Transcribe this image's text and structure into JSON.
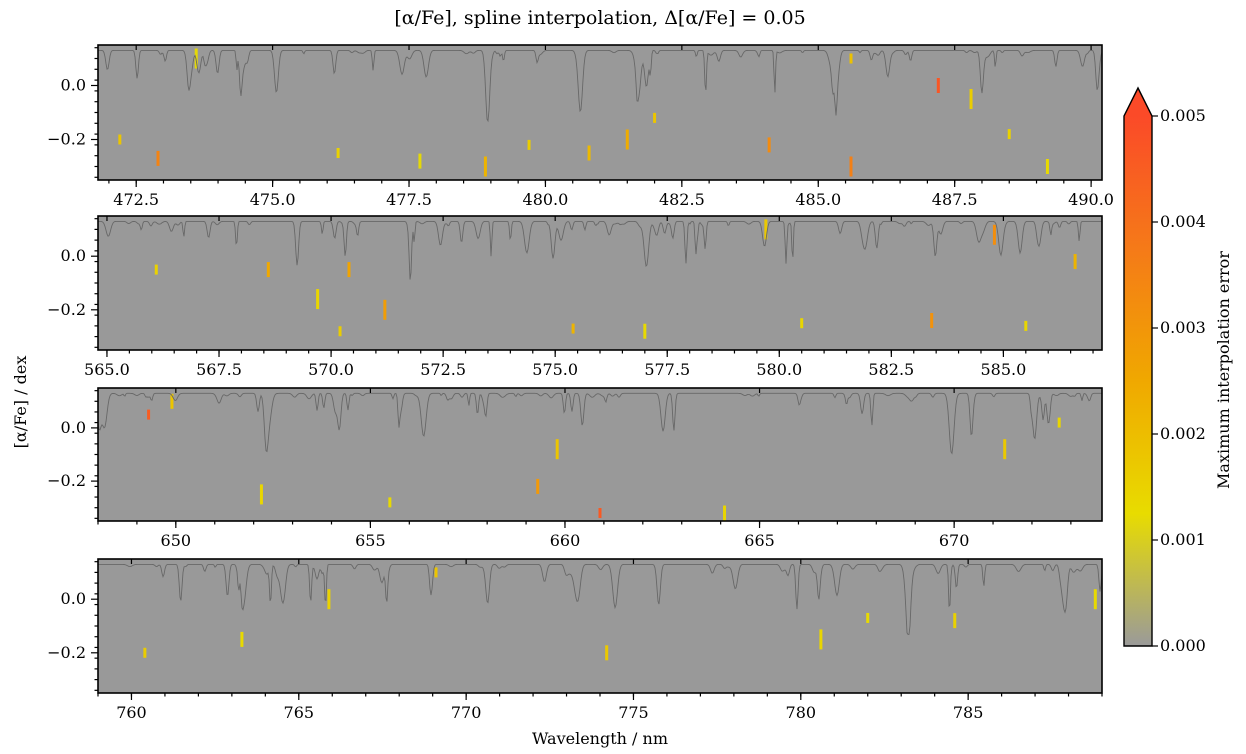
{
  "figure": {
    "title": "[α/Fe], spline interpolation, Δ[α/Fe] = 0.05",
    "xlabel": "Wavelength / nm",
    "ylabel": "[α/Fe] / dex",
    "colorbar_label": "Maximum interpolation error"
  },
  "chart_data": [
    {
      "type": "heatmap",
      "panel": 1,
      "xlim": [
        471.8,
        490.2
      ],
      "ylim": [
        -0.35,
        0.15
      ],
      "xticks": [
        472.5,
        475.0,
        477.5,
        480.0,
        482.5,
        485.0,
        487.5,
        490.0
      ],
      "xtick_labels": [
        "472.5",
        "475.0",
        "477.5",
        "480.0",
        "482.5",
        "485.0",
        "487.5",
        "490.0"
      ],
      "yticks": [
        0.0,
        -0.2
      ],
      "ytick_labels": [
        "0.0",
        "−0.2"
      ],
      "background_value": 0.0,
      "hotspots": [
        {
          "x": 472.2,
          "y": -0.2,
          "v": 0.0018
        },
        {
          "x": 472.9,
          "y": -0.27,
          "v": 0.0035
        },
        {
          "x": 473.6,
          "y": 0.1,
          "v": 0.0012
        },
        {
          "x": 476.2,
          "y": -0.25,
          "v": 0.0015
        },
        {
          "x": 477.7,
          "y": -0.28,
          "v": 0.0012
        },
        {
          "x": 478.9,
          "y": -0.3,
          "v": 0.0022
        },
        {
          "x": 479.7,
          "y": -0.22,
          "v": 0.0016
        },
        {
          "x": 480.8,
          "y": -0.25,
          "v": 0.0021
        },
        {
          "x": 481.5,
          "y": -0.2,
          "v": 0.0024
        },
        {
          "x": 482.0,
          "y": -0.12,
          "v": 0.0018
        },
        {
          "x": 484.1,
          "y": -0.22,
          "v": 0.0033
        },
        {
          "x": 485.6,
          "y": -0.3,
          "v": 0.0036
        },
        {
          "x": 485.6,
          "y": 0.1,
          "v": 0.0019
        },
        {
          "x": 487.2,
          "y": 0.0,
          "v": 0.0047
        },
        {
          "x": 487.8,
          "y": -0.05,
          "v": 0.0016
        },
        {
          "x": 488.5,
          "y": -0.18,
          "v": 0.0015
        },
        {
          "x": 489.2,
          "y": -0.3,
          "v": 0.0013
        }
      ]
    },
    {
      "type": "heatmap",
      "panel": 2,
      "xlim": [
        564.8,
        587.2
      ],
      "ylim": [
        -0.35,
        0.15
      ],
      "xticks": [
        565.0,
        567.5,
        570.0,
        572.5,
        575.0,
        577.5,
        580.0,
        582.5,
        585.0
      ],
      "xtick_labels": [
        "565.0",
        "567.5",
        "570.0",
        "572.5",
        "575.0",
        "577.5",
        "580.0",
        "582.5",
        "585.0"
      ],
      "yticks": [
        0.0,
        -0.2
      ],
      "ytick_labels": [
        "0.0",
        "−0.2"
      ],
      "background_value": 0.0,
      "hotspots": [
        {
          "x": 566.1,
          "y": -0.05,
          "v": 0.0015
        },
        {
          "x": 568.6,
          "y": -0.05,
          "v": 0.0025
        },
        {
          "x": 569.7,
          "y": -0.16,
          "v": 0.0014
        },
        {
          "x": 570.2,
          "y": -0.28,
          "v": 0.0016
        },
        {
          "x": 570.4,
          "y": -0.05,
          "v": 0.0026
        },
        {
          "x": 571.2,
          "y": -0.2,
          "v": 0.0028
        },
        {
          "x": 575.4,
          "y": -0.27,
          "v": 0.0022
        },
        {
          "x": 577.0,
          "y": -0.28,
          "v": 0.0013
        },
        {
          "x": 579.7,
          "y": 0.1,
          "v": 0.0017
        },
        {
          "x": 580.5,
          "y": -0.25,
          "v": 0.0014
        },
        {
          "x": 583.4,
          "y": -0.24,
          "v": 0.0031
        },
        {
          "x": 584.8,
          "y": 0.08,
          "v": 0.0032
        },
        {
          "x": 585.5,
          "y": -0.26,
          "v": 0.0014
        },
        {
          "x": 586.6,
          "y": -0.02,
          "v": 0.0022
        }
      ]
    },
    {
      "type": "heatmap",
      "panel": 3,
      "xlim": [
        648.0,
        673.8
      ],
      "ylim": [
        -0.35,
        0.15
      ],
      "xticks": [
        650,
        655,
        660,
        665,
        670
      ],
      "xtick_labels": [
        "650",
        "655",
        "660",
        "665",
        "670"
      ],
      "yticks": [
        0.0,
        -0.2
      ],
      "ytick_labels": [
        "0.0",
        "−0.2"
      ],
      "background_value": 0.0,
      "hotspots": [
        {
          "x": 649.3,
          "y": 0.05,
          "v": 0.0045
        },
        {
          "x": 649.9,
          "y": 0.1,
          "v": 0.0018
        },
        {
          "x": 652.2,
          "y": -0.25,
          "v": 0.0014
        },
        {
          "x": 655.5,
          "y": -0.28,
          "v": 0.0013
        },
        {
          "x": 659.3,
          "y": -0.22,
          "v": 0.0029
        },
        {
          "x": 659.8,
          "y": -0.08,
          "v": 0.0018
        },
        {
          "x": 660.9,
          "y": -0.32,
          "v": 0.0046
        },
        {
          "x": 664.1,
          "y": -0.32,
          "v": 0.0014
        },
        {
          "x": 671.3,
          "y": -0.08,
          "v": 0.0017
        },
        {
          "x": 672.7,
          "y": 0.02,
          "v": 0.0014
        }
      ]
    },
    {
      "type": "heatmap",
      "panel": 4,
      "xlim": [
        759.0,
        789.0
      ],
      "ylim": [
        -0.35,
        0.15
      ],
      "xticks": [
        760,
        765,
        770,
        775,
        780,
        785
      ],
      "xtick_labels": [
        "760",
        "765",
        "770",
        "775",
        "780",
        "785"
      ],
      "yticks": [
        0.0,
        -0.2
      ],
      "ytick_labels": [
        "0.0",
        "−0.2"
      ],
      "background_value": 0.0,
      "hotspots": [
        {
          "x": 760.4,
          "y": -0.2,
          "v": 0.0016
        },
        {
          "x": 763.3,
          "y": -0.15,
          "v": 0.0013
        },
        {
          "x": 765.9,
          "y": 0.0,
          "v": 0.0015
        },
        {
          "x": 769.1,
          "y": 0.1,
          "v": 0.0018
        },
        {
          "x": 774.2,
          "y": -0.2,
          "v": 0.0017
        },
        {
          "x": 780.6,
          "y": -0.15,
          "v": 0.0014
        },
        {
          "x": 782.0,
          "y": -0.07,
          "v": 0.0013
        },
        {
          "x": 784.6,
          "y": -0.08,
          "v": 0.0015
        },
        {
          "x": 788.8,
          "y": 0.0,
          "v": 0.0013
        }
      ]
    }
  ],
  "colorbar": {
    "min": 0.0,
    "max": 0.005,
    "extend": "max",
    "ticks": [
      0.0,
      0.001,
      0.002,
      0.003,
      0.004,
      0.005
    ],
    "tick_labels": [
      "0.000",
      "0.001",
      "0.002",
      "0.003",
      "0.004",
      "0.005"
    ],
    "colors": [
      "#9a9a9a",
      "#e8dc00",
      "#f0a800",
      "#f57a18",
      "#fb4a28"
    ]
  }
}
